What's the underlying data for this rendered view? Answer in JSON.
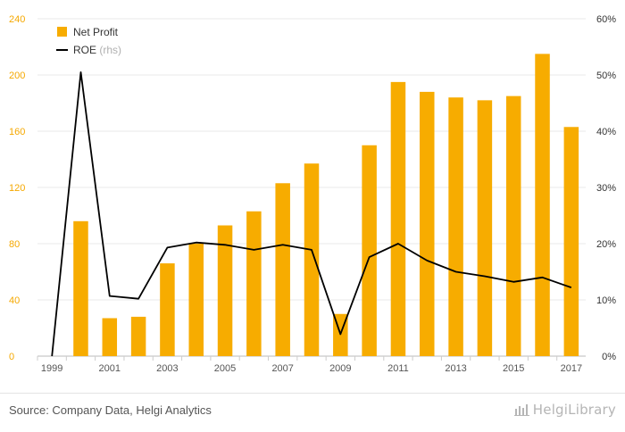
{
  "chart_data": {
    "type": "bar",
    "categories": [
      "1999",
      "2000",
      "2001",
      "2002",
      "2003",
      "2004",
      "2005",
      "2006",
      "2007",
      "2008",
      "2009",
      "2010",
      "2011",
      "2012",
      "2013",
      "2014",
      "2015",
      "2016",
      "2017"
    ],
    "x_tick_labels": [
      "1999",
      "2001",
      "2003",
      "2005",
      "2007",
      "2009",
      "2011",
      "2013",
      "2015",
      "2017"
    ],
    "series": [
      {
        "name": "Net Profit",
        "type": "bar",
        "axis": "left",
        "values": [
          null,
          96,
          27,
          28,
          66,
          80,
          93,
          103,
          123,
          137,
          30,
          150,
          195,
          188,
          184,
          182,
          185,
          215,
          163
        ]
      },
      {
        "name": "ROE",
        "suffix": " (rhs)",
        "type": "line",
        "axis": "right",
        "unit": "%",
        "values": [
          0.0,
          50.5,
          10.7,
          10.2,
          19.3,
          20.2,
          19.8,
          18.9,
          19.8,
          18.9,
          3.9,
          17.6,
          20.0,
          17.0,
          15.0,
          14.2,
          13.2,
          14.0,
          12.2
        ]
      }
    ],
    "y_left": {
      "lim": [
        0,
        240
      ],
      "ticks": [
        "0",
        "40",
        "80",
        "120",
        "160",
        "200",
        "240"
      ],
      "color": "#f5a800"
    },
    "y_right": {
      "lim": [
        0,
        60
      ],
      "ticks": [
        "0%",
        "10%",
        "20%",
        "30%",
        "40%",
        "50%",
        "60%"
      ]
    },
    "legend": {
      "placement": "top-left"
    },
    "grid": true,
    "colors": {
      "bar": "#f7ac00",
      "line": "#000000",
      "left_ticks": "#f5a800",
      "right_ticks": "#333333",
      "grid": "#e9e9e9",
      "muted": "#b0b0b0"
    }
  },
  "footer": {
    "source": "Source: Company Data, Helgi Analytics",
    "brand": "HelgiLibrary",
    "brand_icon": "helgi-logo-icon"
  }
}
